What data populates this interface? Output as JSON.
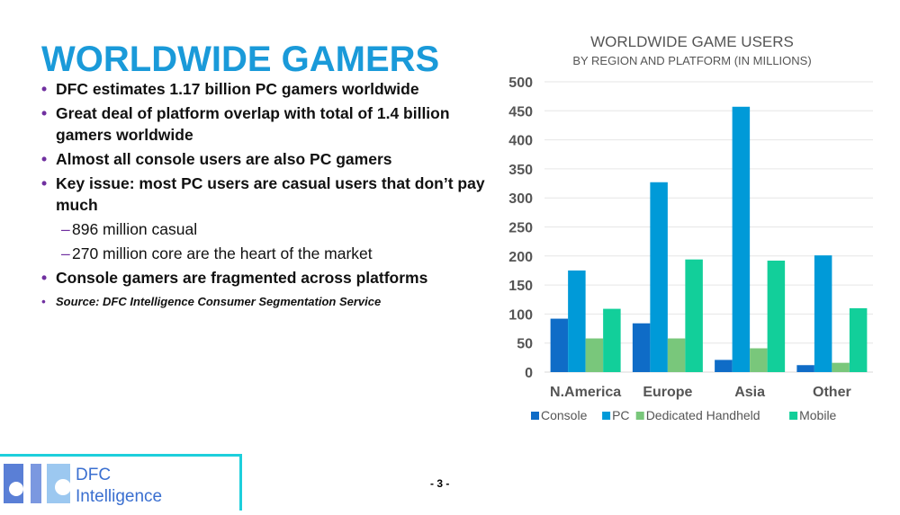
{
  "slide": {
    "title": "WORLDWIDE GAMERS",
    "page": "- 3 -",
    "bullets": [
      {
        "text": "DFC estimates 1.17 billion PC gamers worldwide",
        "level": 1
      },
      {
        "text": "Great deal of platform overlap with total of 1.4 billion gamers worldwide",
        "level": 1
      },
      {
        "text": "Almost all console users are also PC gamers",
        "level": 1
      },
      {
        "text": "Key issue: most PC users are casual users that don’t pay much",
        "level": 1
      },
      {
        "text": "896 million casual",
        "level": 2
      },
      {
        "text": "270 million core are the heart of the market",
        "level": 2
      },
      {
        "text": "Console gamers are fragmented across platforms",
        "level": 1
      },
      {
        "text": "Source: DFC Intelligence Consumer Segmentation Service",
        "level": "source"
      }
    ],
    "logo": {
      "mark": "dfc",
      "line1": "DFC",
      "line2": "Intelligence"
    }
  },
  "chart_data": {
    "type": "bar",
    "title": "WORLDWIDE GAME USERS",
    "subtitle": "BY REGION AND PLATFORM (IN MILLIONS)",
    "categories": [
      "N.America",
      "Europe",
      "Asia",
      "Other"
    ],
    "ylim": [
      0,
      500
    ],
    "yticks": [
      0,
      50,
      100,
      150,
      200,
      250,
      300,
      350,
      400,
      450,
      500
    ],
    "grid": true,
    "legend": "bottom",
    "series": [
      {
        "name": "Console",
        "color": "#0f6cc7",
        "values": [
          92,
          84,
          21,
          12
        ]
      },
      {
        "name": "PC",
        "color": "#009ad8",
        "values": [
          175,
          327,
          457,
          201
        ]
      },
      {
        "name": "Dedicated Handheld",
        "color": "#79c77b",
        "values": [
          58,
          58,
          41,
          16
        ]
      },
      {
        "name": "Mobile",
        "color": "#12cf9a",
        "values": [
          109,
          194,
          192,
          110
        ]
      }
    ]
  }
}
